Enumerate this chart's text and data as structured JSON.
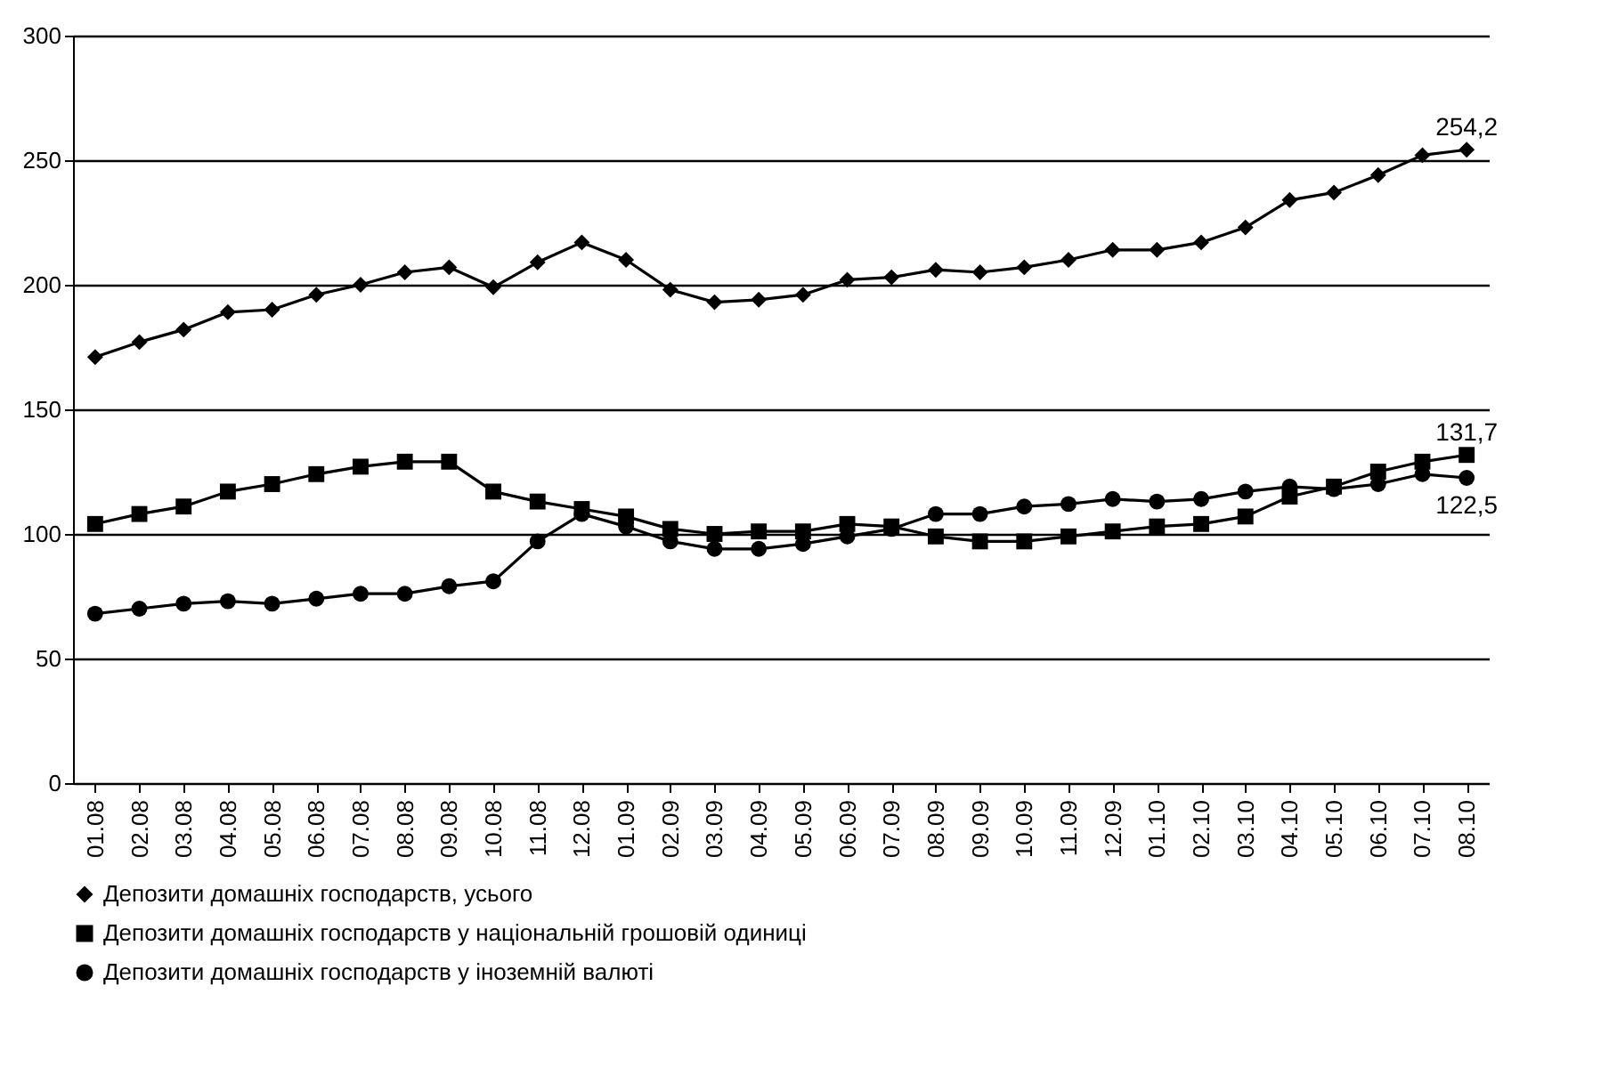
{
  "chart_data": {
    "type": "line",
    "categories": [
      "01.08",
      "02.08",
      "03.08",
      "04.08",
      "05.08",
      "06.08",
      "07.08",
      "08.08",
      "09.08",
      "10.08",
      "11.08",
      "12.08",
      "01.09",
      "02.09",
      "03.09",
      "04.09",
      "05.09",
      "06.09",
      "07.09",
      "08.09",
      "09.09",
      "10.09",
      "11.09",
      "12.09",
      "01.10",
      "02.10",
      "03.10",
      "04.10",
      "05.10",
      "06.10",
      "07.10",
      "08.10"
    ],
    "series": [
      {
        "name": "Депозити домашніх господарств, усього",
        "color": "#000000",
        "marker": "diamond",
        "values": [
          171,
          177,
          182,
          189,
          190,
          196,
          200,
          205,
          207,
          199,
          209,
          217,
          210,
          198,
          193,
          194,
          196,
          202,
          203,
          206,
          205,
          207,
          210,
          214,
          214,
          217,
          223,
          234,
          237,
          244,
          252,
          254.2
        ],
        "value_labels": [
          null,
          null,
          null,
          null,
          null,
          null,
          null,
          null,
          null,
          null,
          null,
          null,
          null,
          null,
          null,
          null,
          null,
          null,
          null,
          null,
          null,
          null,
          null,
          null,
          null,
          null,
          null,
          null,
          null,
          null,
          null,
          "254,2"
        ]
      },
      {
        "name": "Депозити домашніх господарств у національній грошовій одиниці",
        "color": "#000000",
        "marker": "square",
        "values": [
          104,
          108,
          111,
          117,
          120,
          124,
          127,
          129,
          129,
          117,
          113,
          110,
          107,
          102,
          100,
          101,
          101,
          104,
          103,
          99,
          97,
          97,
          99,
          101,
          103,
          104,
          107,
          115,
          119,
          125,
          129,
          131.7
        ],
        "value_labels": [
          null,
          null,
          null,
          null,
          null,
          null,
          null,
          null,
          null,
          null,
          null,
          null,
          null,
          null,
          null,
          null,
          null,
          null,
          null,
          null,
          null,
          null,
          null,
          null,
          null,
          null,
          null,
          null,
          null,
          null,
          null,
          "131,7"
        ]
      },
      {
        "name": "Депозити домашніх господарств у іноземній валюті",
        "color": "#000000",
        "marker": "circle",
        "values": [
          68,
          70,
          72,
          73,
          72,
          74,
          76,
          76,
          79,
          81,
          97,
          108,
          103,
          97,
          94,
          94,
          96,
          99,
          102,
          108,
          108,
          111,
          112,
          114,
          113,
          114,
          117,
          119,
          118,
          120,
          124,
          122.5
        ],
        "value_labels": [
          null,
          null,
          null,
          null,
          null,
          null,
          null,
          null,
          null,
          null,
          null,
          null,
          null,
          null,
          null,
          null,
          null,
          null,
          null,
          null,
          null,
          null,
          null,
          null,
          null,
          null,
          null,
          null,
          null,
          null,
          null,
          "122,5"
        ]
      }
    ],
    "ylim": [
      0,
      300
    ],
    "yticks": [
      0,
      50,
      100,
      150,
      200,
      250,
      300
    ],
    "grid": "y",
    "legend": "bottom",
    "line_style": "solid"
  }
}
